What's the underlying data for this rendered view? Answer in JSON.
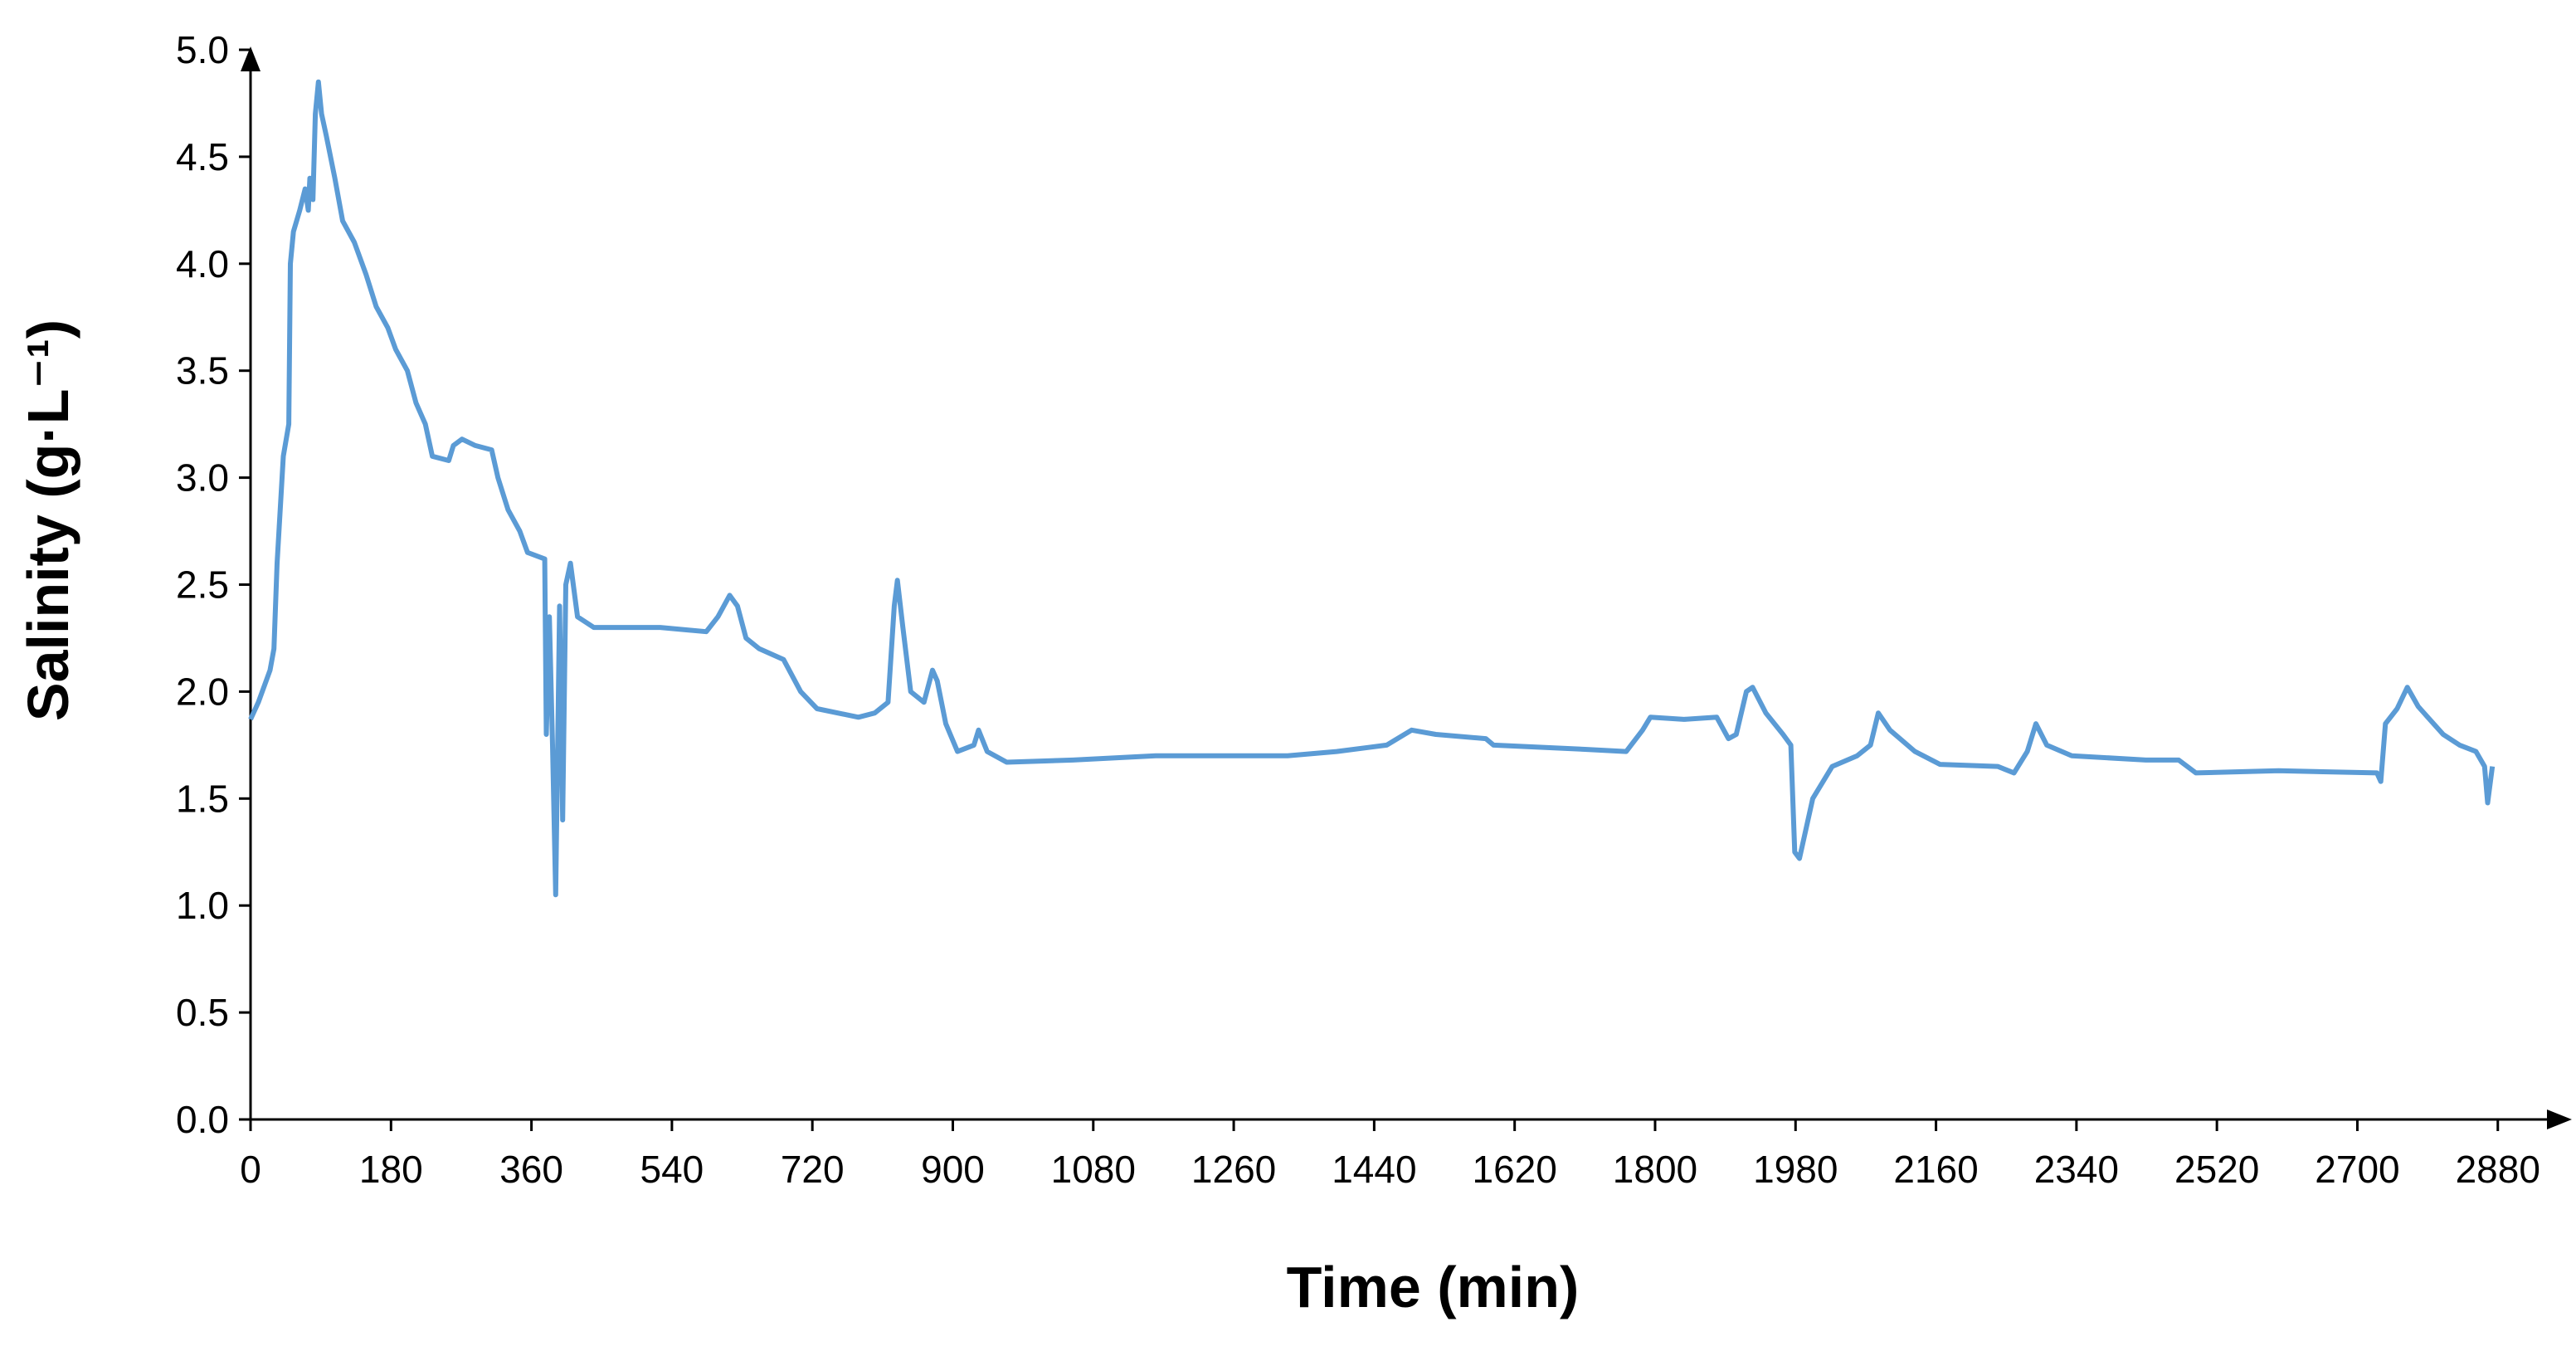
{
  "chart_data": {
    "type": "line",
    "x_label": "Time (min)",
    "y_label": "Salinity (g·L⁻¹)",
    "xlim": [
      0,
      2960
    ],
    "ylim": [
      0,
      5
    ],
    "xticks": [
      0,
      180,
      360,
      540,
      720,
      900,
      1080,
      1260,
      1440,
      1620,
      1800,
      1980,
      2160,
      2340,
      2520,
      2700,
      2880
    ],
    "yticks": [
      {
        "value": 0,
        "label": "0.0"
      },
      0.5,
      {
        "value": 1,
        "label": "1.0"
      },
      1.5,
      {
        "value": 2,
        "label": "2.0"
      },
      2.5,
      {
        "value": 3,
        "label": "3.0"
      },
      3.5,
      {
        "value": 4,
        "label": "4.0"
      },
      4.5,
      {
        "value": 5,
        "label": "5.0"
      }
    ],
    "grid": false,
    "x": [
      0,
      10,
      25,
      30,
      34,
      42,
      49,
      51,
      55,
      63,
      70,
      74,
      76,
      80,
      83,
      87,
      91,
      97,
      108,
      118,
      133,
      148,
      161,
      176,
      186,
      201,
      212,
      224,
      233,
      254,
      260,
      271,
      288,
      309,
      317,
      330,
      345,
      355,
      377,
      379,
      383,
      387,
      391,
      396,
      400,
      404,
      410,
      419,
      440,
      525,
      584,
      599,
      614,
      624,
      635,
      652,
      683,
      705,
      726,
      779,
      800,
      817,
      825,
      829,
      836,
      846,
      863,
      874,
      880,
      891,
      906,
      927,
      933,
      944,
      969,
      1054,
      1160,
      1329,
      1392,
      1456,
      1488,
      1519,
      1583,
      1593,
      1710,
      1763,
      1784,
      1794,
      1837,
      1879,
      1894,
      1904,
      1917,
      1925,
      1942,
      1964,
      1974,
      1979,
      1985,
      2002,
      2027,
      2059,
      2076,
      2086,
      2101,
      2133,
      2165,
      2239,
      2260,
      2277,
      2288,
      2302,
      2334,
      2429,
      2471,
      2493,
      2599,
      2725,
      2730,
      2736,
      2751,
      2764,
      2778,
      2810,
      2831,
      2852,
      2863,
      2867,
      2873
    ],
    "series": [
      {
        "color": "#5b9bd5",
        "values": [
          1.87,
          1.95,
          2.1,
          2.2,
          2.6,
          3.1,
          3.25,
          4.0,
          4.15,
          4.25,
          4.35,
          4.25,
          4.4,
          4.3,
          4.7,
          4.85,
          4.7,
          4.6,
          4.4,
          4.2,
          4.1,
          3.95,
          3.8,
          3.7,
          3.6,
          3.5,
          3.35,
          3.25,
          3.1,
          3.08,
          3.15,
          3.18,
          3.15,
          3.13,
          3.0,
          2.85,
          2.75,
          2.65,
          2.62,
          1.8,
          2.35,
          1.75,
          1.05,
          2.4,
          1.4,
          2.5,
          2.6,
          2.35,
          2.3,
          2.3,
          2.28,
          2.35,
          2.45,
          2.4,
          2.25,
          2.2,
          2.15,
          2.0,
          1.92,
          1.88,
          1.9,
          1.95,
          2.4,
          2.52,
          2.3,
          2.0,
          1.95,
          2.1,
          2.05,
          1.85,
          1.72,
          1.75,
          1.82,
          1.72,
          1.67,
          1.68,
          1.7,
          1.7,
          1.72,
          1.75,
          1.82,
          1.8,
          1.78,
          1.75,
          1.73,
          1.72,
          1.82,
          1.88,
          1.87,
          1.88,
          1.78,
          1.8,
          2.0,
          2.02,
          1.9,
          1.8,
          1.75,
          1.25,
          1.22,
          1.5,
          1.65,
          1.7,
          1.75,
          1.9,
          1.82,
          1.72,
          1.66,
          1.65,
          1.62,
          1.72,
          1.85,
          1.75,
          1.7,
          1.68,
          1.68,
          1.62,
          1.63,
          1.62,
          1.58,
          1.85,
          1.92,
          2.02,
          1.93,
          1.8,
          1.75,
          1.72,
          1.65,
          1.48,
          1.65
        ]
      }
    ]
  }
}
